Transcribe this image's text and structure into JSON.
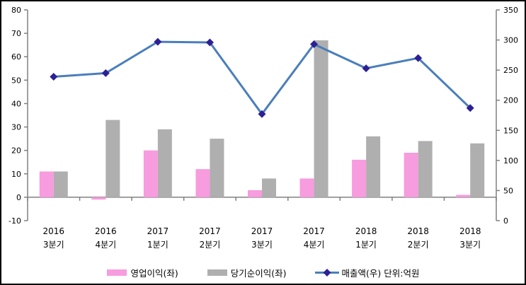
{
  "frame": {
    "background": "#ffffff",
    "border_color": "#000000"
  },
  "chart_data": {
    "type": "bar+line",
    "title": "",
    "grid": false,
    "legend_position": "bottom",
    "axis_color": "#808080",
    "text_color": "#000000",
    "unit_label": "단위:억원",
    "categories": [
      {
        "year": "2016",
        "quarter": "3분기"
      },
      {
        "year": "2016",
        "quarter": "4분기"
      },
      {
        "year": "2017",
        "quarter": "1분기"
      },
      {
        "year": "2017",
        "quarter": "2분기"
      },
      {
        "year": "2017",
        "quarter": "3분기"
      },
      {
        "year": "2017",
        "quarter": "4분기"
      },
      {
        "year": "2018",
        "quarter": "1분기"
      },
      {
        "year": "2018",
        "quarter": "2분기"
      },
      {
        "year": "2018",
        "quarter": "3분기"
      }
    ],
    "left_axis": {
      "min": -10,
      "max": 80,
      "step": 10
    },
    "right_axis": {
      "min": 0,
      "max": 350,
      "step": 50
    },
    "series": [
      {
        "slug": "operating-profit",
        "name": "영업이익(좌)",
        "type": "bar",
        "axis": "left",
        "color": "#F79CDE",
        "values": [
          11,
          -1,
          20,
          12,
          3,
          8,
          16,
          19,
          1
        ]
      },
      {
        "slug": "net-income",
        "name": "당기순이익(좌)",
        "type": "bar",
        "axis": "left",
        "color": "#AFAFAF",
        "values": [
          11,
          33,
          29,
          25,
          8,
          67,
          26,
          24,
          23
        ]
      },
      {
        "slug": "revenue",
        "name": "매출액(우)",
        "type": "line",
        "axis": "right",
        "color": "#4A7EBB",
        "marker_color": "#2D2095",
        "values": [
          239,
          245,
          297,
          296,
          177,
          293,
          253,
          270,
          187
        ]
      }
    ]
  }
}
